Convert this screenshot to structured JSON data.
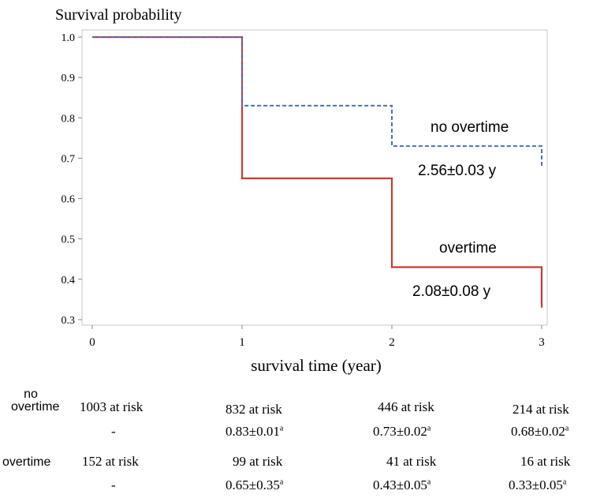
{
  "chart_data": {
    "type": "line",
    "subtype": "kaplan-meier step",
    "ylabel": "Survival probability",
    "xlabel": "survival time (year)",
    "xlim": [
      0,
      3
    ],
    "ylim": [
      0.3,
      1.0
    ],
    "xticks": [
      "0",
      "1",
      "2",
      "3"
    ],
    "yticks": [
      "1.0",
      "0.9",
      "0.8",
      "0.7",
      "0.6",
      "0.5",
      "0.4",
      "0.3"
    ],
    "grid": false,
    "series": [
      {
        "name": "no overtime",
        "label": "no overtime",
        "mean_survival": "2.56±0.03 y",
        "style": "dashed",
        "color": "#4a72b8",
        "x": [
          0,
          1,
          1,
          2,
          2,
          3,
          3
        ],
        "y": [
          1.0,
          1.0,
          0.83,
          0.83,
          0.73,
          0.73,
          0.68
        ]
      },
      {
        "name": "overtime",
        "label": "overtime",
        "mean_survival": "2.08±0.08 y",
        "style": "solid",
        "color": "#c83c32",
        "x": [
          0,
          1,
          1,
          2,
          2,
          3,
          3
        ],
        "y": [
          1.0,
          1.0,
          0.65,
          0.65,
          0.43,
          0.43,
          0.33
        ]
      }
    ]
  },
  "risk_table": {
    "no_overtime": {
      "label_line1": "no",
      "label_line2": "overtime",
      "at_risk": [
        "1003 at risk",
        "832 at risk",
        "446 at risk",
        "214 at risk"
      ],
      "survival": [
        "-",
        "0.83±0.01",
        "0.73±0.02",
        "0.68±0.02"
      ]
    },
    "overtime": {
      "label": "overtime",
      "at_risk": [
        "152 at risk",
        "99 at risk",
        "41 at risk",
        "16 at risk"
      ],
      "survival": [
        "-",
        "0.65±0.35",
        "0.43±0.05",
        "0.33±0.05"
      ]
    },
    "superscript": "a"
  }
}
